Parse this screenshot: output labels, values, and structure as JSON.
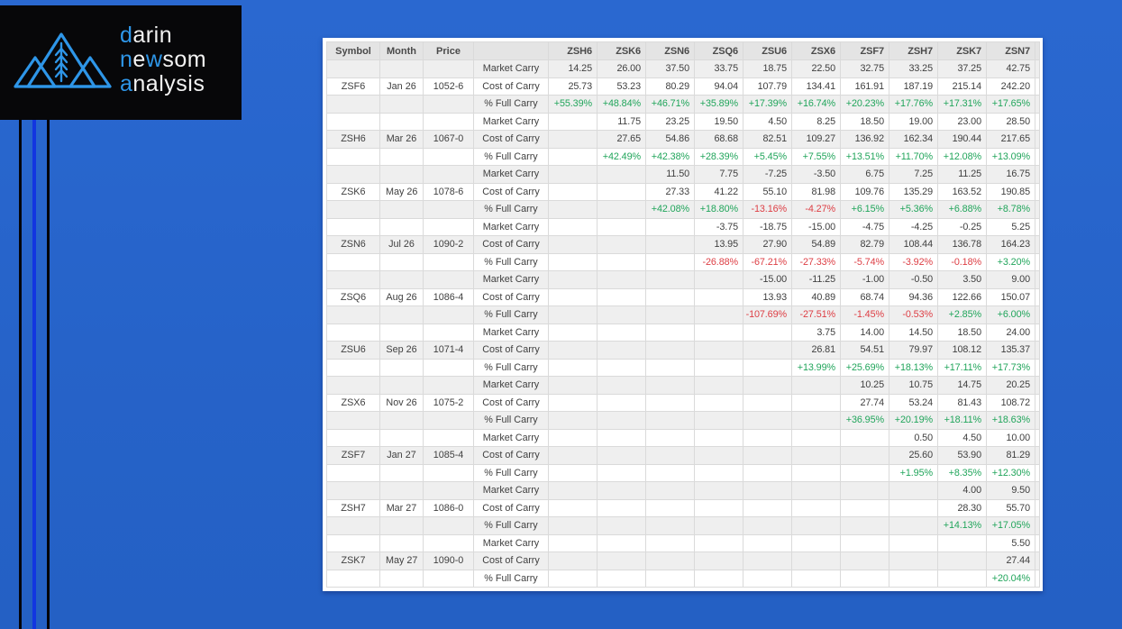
{
  "logo": {
    "l1_blue": "d",
    "l1_rest": "arin",
    "l2_blue1": "n",
    "l2_mid": "e",
    "l2_blue2": "w",
    "l2_rest": "som",
    "l3_blue": "a",
    "l3_rest": "nalysis"
  },
  "colors": {
    "background_blue": "#2663c9",
    "accent_line_blue": "#1236e0",
    "accent_line_black": "#04040a",
    "logo_background": "#070709",
    "logo_accent_blue": "#2e96e8",
    "positive_green": "#21a55b",
    "negative_red": "#dd3e44",
    "header_gray": "#e4e4e4",
    "stripe_gray": "#efefef"
  },
  "chart_data": {
    "type": "table",
    "title": "Soybean futures carry table (Market Carry / Cost of Carry / % Full Carry)",
    "fixed_columns": [
      "Symbol",
      "Month",
      "Price",
      ""
    ],
    "contract_columns": [
      "ZSH6",
      "ZSK6",
      "ZSN6",
      "ZSQ6",
      "ZSU6",
      "ZSX6",
      "ZSF7",
      "ZSH7",
      "ZSK7",
      "ZSN7"
    ],
    "row_labels": {
      "market": "Market Carry",
      "cost": "Cost of Carry",
      "full": "% Full Carry"
    },
    "groups": [
      {
        "symbol": "ZSF6",
        "month": "Jan 26",
        "price": "1052-6",
        "market": [
          "14.25",
          "26.00",
          "37.50",
          "33.75",
          "18.75",
          "22.50",
          "32.75",
          "33.25",
          "37.25",
          "42.75"
        ],
        "cost": [
          "25.73",
          "53.23",
          "80.29",
          "94.04",
          "107.79",
          "134.41",
          "161.91",
          "187.19",
          "215.14",
          "242.20"
        ],
        "full": [
          "+55.39%",
          "+48.84%",
          "+46.71%",
          "+35.89%",
          "+17.39%",
          "+16.74%",
          "+20.23%",
          "+17.76%",
          "+17.31%",
          "+17.65%"
        ]
      },
      {
        "symbol": "ZSH6",
        "month": "Mar 26",
        "price": "1067-0",
        "market": [
          "",
          "11.75",
          "23.25",
          "19.50",
          "4.50",
          "8.25",
          "18.50",
          "19.00",
          "23.00",
          "28.50"
        ],
        "cost": [
          "",
          "27.65",
          "54.86",
          "68.68",
          "82.51",
          "109.27",
          "136.92",
          "162.34",
          "190.44",
          "217.65"
        ],
        "full": [
          "",
          "+42.49%",
          "+42.38%",
          "+28.39%",
          "+5.45%",
          "+7.55%",
          "+13.51%",
          "+11.70%",
          "+12.08%",
          "+13.09%"
        ]
      },
      {
        "symbol": "ZSK6",
        "month": "May 26",
        "price": "1078-6",
        "market": [
          "",
          "",
          "11.50",
          "7.75",
          "-7.25",
          "-3.50",
          "6.75",
          "7.25",
          "11.25",
          "16.75"
        ],
        "cost": [
          "",
          "",
          "27.33",
          "41.22",
          "55.10",
          "81.98",
          "109.76",
          "135.29",
          "163.52",
          "190.85"
        ],
        "full": [
          "",
          "",
          "+42.08%",
          "+18.80%",
          "-13.16%",
          "-4.27%",
          "+6.15%",
          "+5.36%",
          "+6.88%",
          "+8.78%"
        ]
      },
      {
        "symbol": "ZSN6",
        "month": "Jul 26",
        "price": "1090-2",
        "market": [
          "",
          "",
          "",
          "-3.75",
          "-18.75",
          "-15.00",
          "-4.75",
          "-4.25",
          "-0.25",
          "5.25"
        ],
        "cost": [
          "",
          "",
          "",
          "13.95",
          "27.90",
          "54.89",
          "82.79",
          "108.44",
          "136.78",
          "164.23"
        ],
        "full": [
          "",
          "",
          "",
          "-26.88%",
          "-67.21%",
          "-27.33%",
          "-5.74%",
          "-3.92%",
          "-0.18%",
          "+3.20%"
        ]
      },
      {
        "symbol": "ZSQ6",
        "month": "Aug 26",
        "price": "1086-4",
        "market": [
          "",
          "",
          "",
          "",
          "-15.00",
          "-11.25",
          "-1.00",
          "-0.50",
          "3.50",
          "9.00"
        ],
        "cost": [
          "",
          "",
          "",
          "",
          "13.93",
          "40.89",
          "68.74",
          "94.36",
          "122.66",
          "150.07"
        ],
        "full": [
          "",
          "",
          "",
          "",
          "-107.69%",
          "-27.51%",
          "-1.45%",
          "-0.53%",
          "+2.85%",
          "+6.00%"
        ]
      },
      {
        "symbol": "ZSU6",
        "month": "Sep 26",
        "price": "1071-4",
        "market": [
          "",
          "",
          "",
          "",
          "",
          "3.75",
          "14.00",
          "14.50",
          "18.50",
          "24.00"
        ],
        "cost": [
          "",
          "",
          "",
          "",
          "",
          "26.81",
          "54.51",
          "79.97",
          "108.12",
          "135.37"
        ],
        "full": [
          "",
          "",
          "",
          "",
          "",
          "+13.99%",
          "+25.69%",
          "+18.13%",
          "+17.11%",
          "+17.73%"
        ]
      },
      {
        "symbol": "ZSX6",
        "month": "Nov 26",
        "price": "1075-2",
        "market": [
          "",
          "",
          "",
          "",
          "",
          "",
          "10.25",
          "10.75",
          "14.75",
          "20.25"
        ],
        "cost": [
          "",
          "",
          "",
          "",
          "",
          "",
          "27.74",
          "53.24",
          "81.43",
          "108.72"
        ],
        "full": [
          "",
          "",
          "",
          "",
          "",
          "",
          "+36.95%",
          "+20.19%",
          "+18.11%",
          "+18.63%"
        ]
      },
      {
        "symbol": "ZSF7",
        "month": "Jan 27",
        "price": "1085-4",
        "market": [
          "",
          "",
          "",
          "",
          "",
          "",
          "",
          "0.50",
          "4.50",
          "10.00"
        ],
        "cost": [
          "",
          "",
          "",
          "",
          "",
          "",
          "",
          "25.60",
          "53.90",
          "81.29"
        ],
        "full": [
          "",
          "",
          "",
          "",
          "",
          "",
          "",
          "+1.95%",
          "+8.35%",
          "+12.30%"
        ]
      },
      {
        "symbol": "ZSH7",
        "month": "Mar 27",
        "price": "1086-0",
        "market": [
          "",
          "",
          "",
          "",
          "",
          "",
          "",
          "",
          "4.00",
          "9.50"
        ],
        "cost": [
          "",
          "",
          "",
          "",
          "",
          "",
          "",
          "",
          "28.30",
          "55.70"
        ],
        "full": [
          "",
          "",
          "",
          "",
          "",
          "",
          "",
          "",
          "+14.13%",
          "+17.05%"
        ]
      },
      {
        "symbol": "ZSK7",
        "month": "May 27",
        "price": "1090-0",
        "market": [
          "",
          "",
          "",
          "",
          "",
          "",
          "",
          "",
          "",
          "5.50"
        ],
        "cost": [
          "",
          "",
          "",
          "",
          "",
          "",
          "",
          "",
          "",
          "27.44"
        ],
        "full": [
          "",
          "",
          "",
          "",
          "",
          "",
          "",
          "",
          "",
          "+20.04%"
        ]
      }
    ]
  }
}
